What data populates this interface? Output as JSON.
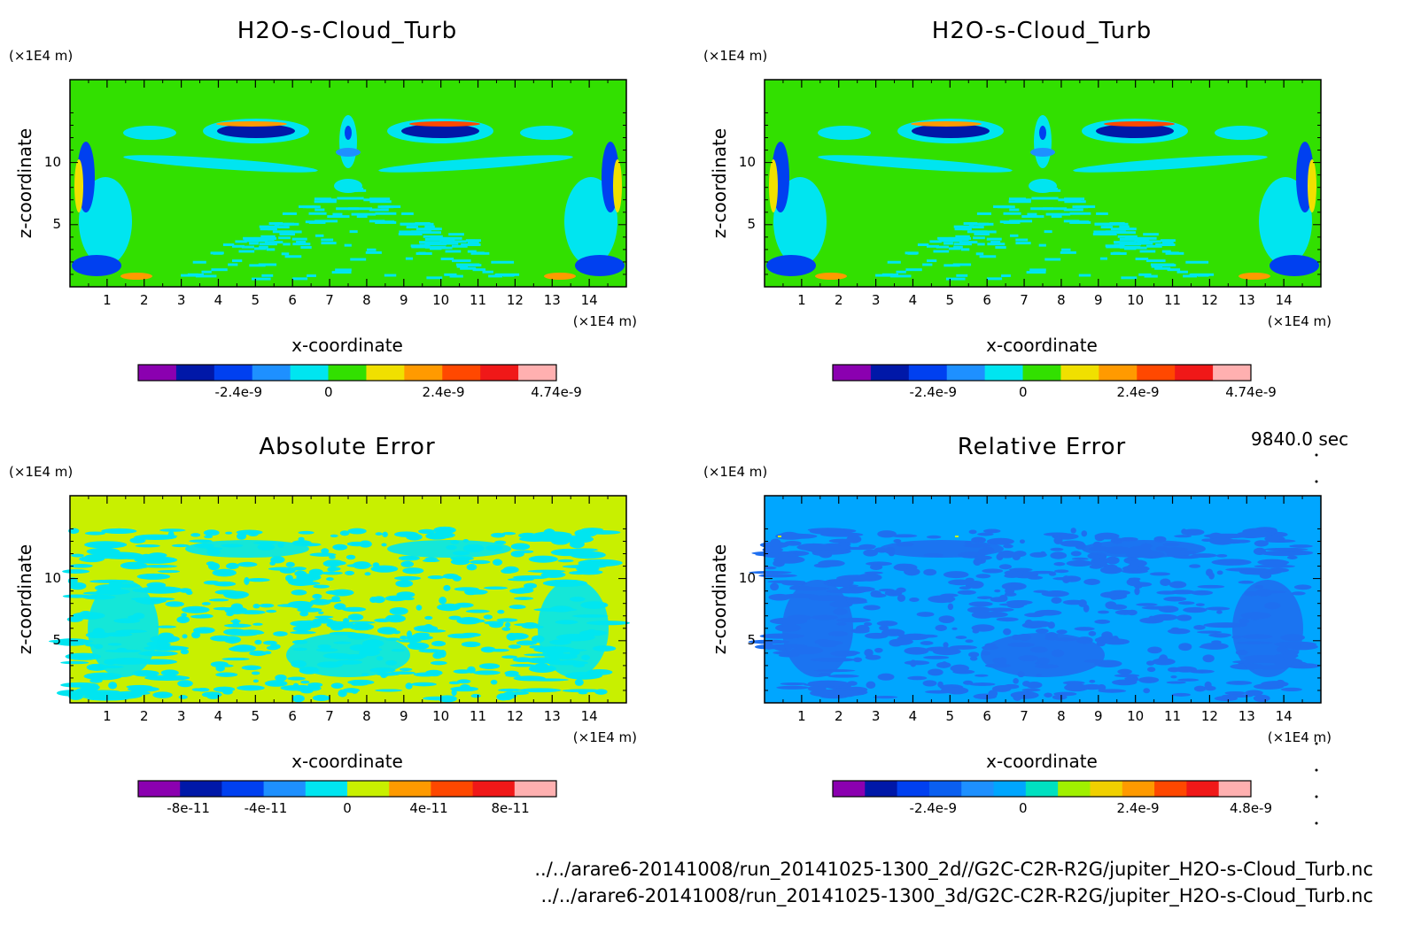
{
  "time_label": "9840.0 sec",
  "files": [
    "../../arare6-20141008/run_20141025-1300_2d//G2C-C2R-R2G/jupiter_H2O-s-Cloud_Turb.nc",
    "../../arare6-20141008/run_20141025-1300_3d/G2C-C2R-R2G/jupiter_H2O-s-Cloud_Turb.nc"
  ],
  "chart_data": [
    {
      "type": "heatmap",
      "title": "H2O-s-Cloud_Turb",
      "xlabel": "x-coordinate",
      "ylabel": "z-coordinate",
      "xunit": "(×1E4 m)",
      "yunit": "(×1E4 m)",
      "xlim": [
        0,
        15
      ],
      "ylim": [
        0,
        15
      ],
      "xticks": [
        "1",
        "2",
        "3",
        "4",
        "5",
        "6",
        "7",
        "8",
        "9",
        "10",
        "11",
        "12",
        "13",
        "14"
      ],
      "yticks": [
        "5",
        "10"
      ],
      "colorbar": {
        "colors": [
          "#8b00b0",
          "#0018a8",
          "#0040f0",
          "#1e90ff",
          "#00e5f0",
          "#32e000",
          "#f0e000",
          "#ff9a00",
          "#ff4800",
          "#f01818",
          "#ffb0b0"
        ],
        "labels": [
          "-2.4e-9",
          "0",
          "2.4e-9",
          "4.74e-9"
        ]
      }
    },
    {
      "type": "heatmap",
      "title": "H2O-s-Cloud_Turb",
      "xlabel": "x-coordinate",
      "ylabel": "z-coordinate",
      "xunit": "(×1E4 m)",
      "yunit": "(×1E4 m)",
      "xlim": [
        0,
        15
      ],
      "ylim": [
        0,
        15
      ],
      "xticks": [
        "1",
        "2",
        "3",
        "4",
        "5",
        "6",
        "7",
        "8",
        "9",
        "10",
        "11",
        "12",
        "13",
        "14"
      ],
      "yticks": [
        "5",
        "10"
      ],
      "colorbar": {
        "colors": [
          "#8b00b0",
          "#0018a8",
          "#0040f0",
          "#1e90ff",
          "#00e5f0",
          "#32e000",
          "#f0e000",
          "#ff9a00",
          "#ff4800",
          "#f01818",
          "#ffb0b0"
        ],
        "labels": [
          "-2.4e-9",
          "0",
          "2.4e-9",
          "4.74e-9"
        ]
      }
    },
    {
      "type": "heatmap",
      "title": "Absolute Error",
      "xlabel": "x-coordinate",
      "ylabel": "z-coordinate",
      "xunit": "(×1E4 m)",
      "yunit": "(×1E4 m)",
      "xlim": [
        0,
        15
      ],
      "ylim": [
        0,
        15
      ],
      "xticks": [
        "1",
        "2",
        "3",
        "4",
        "5",
        "6",
        "7",
        "8",
        "9",
        "10",
        "11",
        "12",
        "13",
        "14"
      ],
      "yticks": [
        "5",
        "10"
      ],
      "colorbar": {
        "colors": [
          "#8b00b0",
          "#0018a8",
          "#0040f0",
          "#1e90ff",
          "#00e5f0",
          "#c8f000",
          "#ff9a00",
          "#ff4800",
          "#f01818",
          "#ffb0b0"
        ],
        "labels": [
          "-8e-11",
          "-4e-11",
          "0",
          "4e-11",
          "8e-11"
        ]
      }
    },
    {
      "type": "heatmap",
      "title": "Relative Error",
      "xlabel": "x-coordinate",
      "ylabel": "z-coordinate",
      "xunit": "(×1E4 m)",
      "yunit": "(×1E4 m)",
      "xlim": [
        0,
        15
      ],
      "ylim": [
        0,
        15
      ],
      "xticks": [
        "1",
        "2",
        "3",
        "4",
        "5",
        "6",
        "7",
        "8",
        "9",
        "10",
        "11",
        "12",
        "13",
        "14"
      ],
      "yticks": [
        "5",
        "10"
      ],
      "colorbar": {
        "colors": [
          "#8b00b0",
          "#0018a8",
          "#0040f0",
          "#0a5ff0",
          "#1e90ff",
          "#00a6ff",
          "#00e0c0",
          "#a0f000",
          "#f0d000",
          "#ff9a00",
          "#ff4800",
          "#f01818",
          "#ffb0b0"
        ],
        "labels": [
          "-2.4e-9",
          "0",
          "2.4e-9",
          "4.8e-9"
        ]
      }
    }
  ]
}
